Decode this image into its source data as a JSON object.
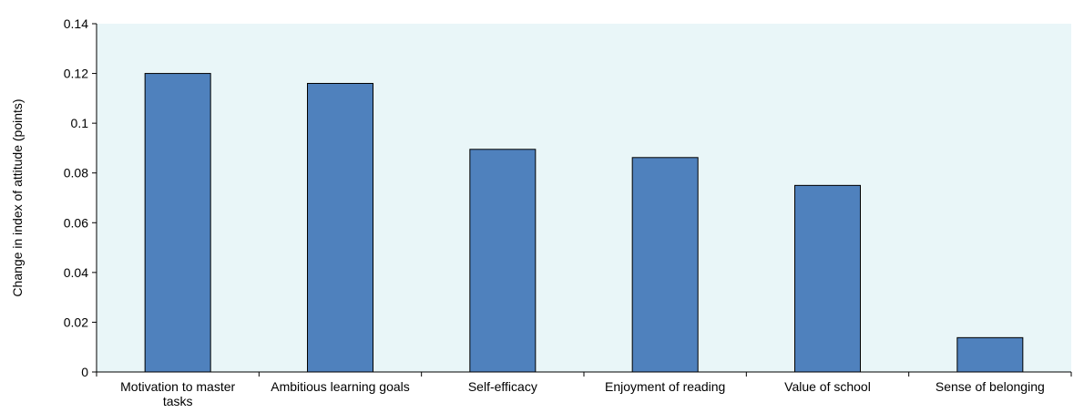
{
  "chart_data": {
    "type": "bar",
    "categories": [
      "Motivation to master tasks",
      "Ambitious learning goals",
      "Self-efficacy",
      "Enjoyment of reading",
      "Value of school",
      "Sense of belonging"
    ],
    "category_lines": [
      [
        "Motivation to master",
        "tasks"
      ],
      [
        "Ambitious learning goals"
      ],
      [
        "Self-efficacy"
      ],
      [
        "Enjoyment of reading"
      ],
      [
        "Value of school"
      ],
      [
        "Sense of belonging"
      ]
    ],
    "values": [
      0.12,
      0.116,
      0.0895,
      0.0862,
      0.075,
      0.0138
    ],
    "ylabel": "Change in index  of attitude (points)",
    "ylim": [
      0,
      0.14
    ],
    "yticks": [
      "0",
      "0.02",
      "0.04",
      "0.06",
      "0.08",
      "0.1",
      "0.12",
      "0.14"
    ],
    "ytick_values": [
      0,
      0.02,
      0.04,
      0.06,
      0.08,
      0.1,
      0.12,
      0.14
    ],
    "grid": false,
    "colors": {
      "bar_fill": "#4F81BD",
      "bar_stroke": "#000000",
      "plot_background": "#E9F6F8",
      "axis": "#000000"
    }
  }
}
